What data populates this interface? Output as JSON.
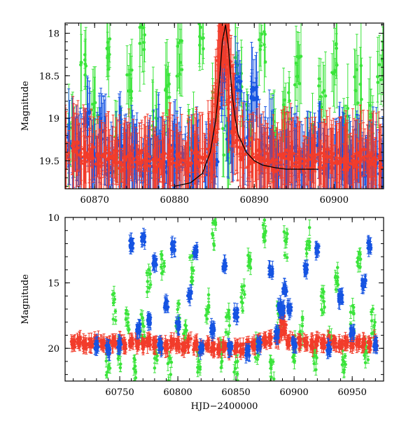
{
  "chart_data": [
    {
      "type": "scatter",
      "title": "",
      "xlabel": "",
      "ylabel": "Magnitude",
      "xlim": [
        60866.3,
        60906.2
      ],
      "ylim": [
        19.83,
        17.88
      ],
      "y_inverted": true,
      "xticks": [
        60870,
        60880,
        60890,
        60900
      ],
      "xtick_labels": [
        "60870",
        "60880",
        "60890",
        "60900"
      ],
      "yticks": [
        18,
        18.5,
        19,
        19.5
      ],
      "ytick_labels": [
        "18",
        "18.5",
        "19",
        "19.5"
      ],
      "grid": false,
      "legend": "none",
      "colors": {
        "red": "#f23c2b",
        "green": "#3be43b",
        "blue": "#1654e2",
        "model": "#000000"
      },
      "series": [
        {
          "color": "red",
          "density": "high",
          "x": [
            60866.5,
            60867.5,
            60868.5,
            60869.5,
            60870.5,
            60871.5,
            60872.5,
            60873.5,
            60874.5,
            60875.5,
            60876.5,
            60877.5,
            60878.5,
            60879.5,
            60880.5,
            60881.5,
            60882.5,
            60883.5,
            60884.5,
            60885.0,
            60885.5,
            60885.8,
            60886.1,
            60886.4,
            60886.7,
            60887.1,
            60887.5,
            60888.5,
            60889.5,
            60890.5,
            60891.5,
            60892.5,
            60893.5,
            60894.5,
            60895.5,
            60896.5,
            60897.5,
            60898.5,
            60899.5,
            60900.5,
            60901.5,
            60902.5,
            60903.5,
            60904.5,
            60905.5
          ],
          "y": [
            19.4,
            19.35,
            19.45,
            19.4,
            19.5,
            19.4,
            19.45,
            19.55,
            19.5,
            19.45,
            19.5,
            19.55,
            19.5,
            19.45,
            19.5,
            19.55,
            19.45,
            19.5,
            19.4,
            19.2,
            18.8,
            18.3,
            17.9,
            18.0,
            18.4,
            18.8,
            19.2,
            19.4,
            19.5,
            19.45,
            19.5,
            19.55,
            19.5,
            19.45,
            19.5,
            19.55,
            19.5,
            19.5,
            19.45,
            19.5,
            19.55,
            19.5,
            19.45,
            19.5,
            19.5
          ]
        },
        {
          "color": "green",
          "density": "medium",
          "x": [
            60867.0,
            60868.5,
            60870.0,
            60871.5,
            60873.0,
            60874.5,
            60876.0,
            60877.5,
            60879.0,
            60880.5,
            60882.0,
            60883.5,
            60885.0,
            60886.5,
            60888.0,
            60889.5,
            60891.0,
            60892.5,
            60894.0,
            60895.5,
            60897.0,
            60898.5,
            60900.0,
            60901.5,
            60903.0,
            60904.5,
            60905.8
          ],
          "y": [
            19.2,
            18.4,
            19.0,
            18.2,
            19.3,
            18.6,
            18.1,
            19.1,
            18.7,
            18.3,
            19.2,
            18.0,
            18.9,
            19.3,
            18.5,
            19.0,
            18.2,
            19.2,
            18.8,
            18.4,
            19.3,
            18.7,
            18.3,
            19.1,
            18.6,
            19.0,
            18.5
          ]
        },
        {
          "color": "blue",
          "density": "high",
          "x": [
            60867.0,
            60868.0,
            60869.0,
            60870.0,
            60871.0,
            60872.0,
            60873.0,
            60874.0,
            60875.0,
            60876.0,
            60877.0,
            60878.0,
            60879.0,
            60880.0,
            60881.0,
            60882.0,
            60883.0,
            60884.0,
            60885.0,
            60886.0,
            60887.0,
            60888.0,
            60889.0,
            60890.0,
            60891.0,
            60892.0,
            60893.0,
            60894.0,
            60895.0,
            60896.0,
            60897.0,
            60898.0,
            60899.0,
            60900.0,
            60901.0,
            60902.0,
            60903.0,
            60904.0,
            60905.0,
            60906.0
          ],
          "y": [
            19.3,
            19.4,
            19.0,
            19.5,
            19.2,
            19.6,
            19.3,
            19.5,
            19.4,
            19.6,
            19.5,
            19.3,
            19.6,
            19.4,
            19.5,
            19.6,
            19.4,
            19.6,
            19.5,
            18.5,
            19.2,
            18.6,
            19.3,
            18.7,
            19.4,
            19.3,
            19.6,
            19.5,
            19.4,
            19.6,
            19.5,
            19.3,
            19.6,
            19.5,
            19.4,
            19.6,
            19.5,
            19.6,
            19.5,
            19.6
          ]
        }
      ],
      "model_curve": {
        "color": "model",
        "x": [
          60880.0,
          60882.0,
          60883.5,
          60884.5,
          60885.2,
          60885.6,
          60886.0,
          60886.4,
          60886.8,
          60887.2,
          60887.6,
          60888.0,
          60889.0,
          60890.0,
          60891.0,
          60892.5,
          60894.0,
          60896.0,
          60898.0
        ],
        "y": [
          19.8,
          19.76,
          19.65,
          19.4,
          19.0,
          18.6,
          18.1,
          17.9,
          18.2,
          18.7,
          19.0,
          19.2,
          19.4,
          19.5,
          19.55,
          19.58,
          19.6,
          19.6,
          19.6
        ]
      }
    },
    {
      "type": "scatter",
      "title": "",
      "xlabel": "HJD−2400000",
      "ylabel": "Magnitude",
      "xlim": [
        60703,
        60977
      ],
      "ylim": [
        22.5,
        10
      ],
      "y_inverted": true,
      "xticks": [
        60750,
        60800,
        60850,
        60900,
        60950
      ],
      "xtick_labels": [
        "60750",
        "60800",
        "60850",
        "60900",
        "60950"
      ],
      "yticks": [
        10,
        15,
        20
      ],
      "ytick_labels": [
        "10",
        "15",
        "20"
      ],
      "grid": false,
      "legend": "none",
      "colors": {
        "red": "#f23c2b",
        "green": "#3be43b",
        "blue": "#1654e2"
      },
      "series": [
        {
          "color": "red",
          "density": "high",
          "x": [
            60710,
            60715,
            60720,
            60725,
            60730,
            60735,
            60740,
            60745,
            60750,
            60755,
            60760,
            60765,
            60770,
            60775,
            60780,
            60785,
            60790,
            60795,
            60800,
            60805,
            60810,
            60815,
            60820,
            60825,
            60830,
            60835,
            60840,
            60845,
            60850,
            60855,
            60860,
            60865,
            60870,
            60875,
            60880,
            60885,
            60888,
            60890,
            60892,
            60895,
            60900,
            60905,
            60910,
            60915,
            60920,
            60925,
            60930,
            60935,
            60940,
            60945,
            60950,
            60955,
            60960,
            60965,
            60970
          ],
          "y": [
            19.6,
            19.5,
            19.7,
            19.6,
            19.5,
            19.6,
            19.7,
            19.5,
            19.6,
            19.7,
            19.5,
            19.6,
            19.8,
            19.5,
            19.6,
            19.7,
            19.8,
            19.6,
            19.7,
            19.9,
            19.6,
            19.8,
            20.0,
            19.7,
            19.9,
            20.1,
            19.8,
            20.2,
            19.9,
            20.0,
            19.8,
            19.7,
            19.6,
            19.5,
            19.4,
            19.3,
            18.8,
            17.8,
            18.5,
            19.5,
            19.6,
            19.5,
            19.6,
            19.7,
            19.5,
            19.6,
            19.5,
            19.6,
            19.7,
            19.5,
            19.6,
            19.5,
            19.6,
            19.7,
            19.5
          ]
        },
        {
          "color": "green",
          "density": "medium",
          "x": [
            60740,
            60745,
            60750,
            60757,
            60763,
            60770,
            60775,
            60781,
            60787,
            60793,
            60800,
            60806,
            60812,
            60818,
            60825,
            60831,
            60837,
            60843,
            60850,
            60856,
            60862,
            60868,
            60875,
            60881,
            60887,
            60893,
            60900,
            60906,
            60912,
            60918,
            60925,
            60931,
            60937,
            60943,
            60950,
            60956,
            60962,
            60968
          ],
          "y": [
            21.0,
            16.8,
            20.5,
            17.8,
            21.8,
            18.5,
            15.0,
            20.8,
            13.2,
            21.5,
            17.5,
            19.2,
            14.0,
            21.2,
            17.0,
            11.2,
            20.6,
            18.0,
            22.0,
            16.2,
            13.0,
            20.2,
            10.8,
            21.5,
            17.3,
            12.1,
            20.0,
            18.7,
            11.8,
            21.0,
            16.5,
            19.6,
            14.5,
            21.2,
            17.8,
            13.2,
            20.5,
            18.0
          ]
        },
        {
          "color": "blue",
          "density": "high",
          "x": [
            60730,
            60740,
            60750,
            60760,
            60766,
            60770,
            60775,
            60780,
            60785,
            60790,
            60796,
            60800,
            60810,
            60815,
            60820,
            60830,
            60840,
            60845,
            60850,
            60860,
            60870,
            60880,
            60885,
            60888,
            60890,
            60892,
            60896,
            60900,
            60910,
            60920,
            60930,
            60940,
            60950,
            60960,
            60965,
            60970
          ],
          "y": [
            19.8,
            20.1,
            19.7,
            12.0,
            18.5,
            11.6,
            17.8,
            13.4,
            19.8,
            16.7,
            12.2,
            18.3,
            16.0,
            12.5,
            20.0,
            18.6,
            13.6,
            19.9,
            17.4,
            20.2,
            19.8,
            14.1,
            18.9,
            16.9,
            17.1,
            15.5,
            17.0,
            19.6,
            13.9,
            12.4,
            20.1,
            16.2,
            18.8,
            15.0,
            12.1,
            19.7
          ]
        }
      ]
    }
  ]
}
